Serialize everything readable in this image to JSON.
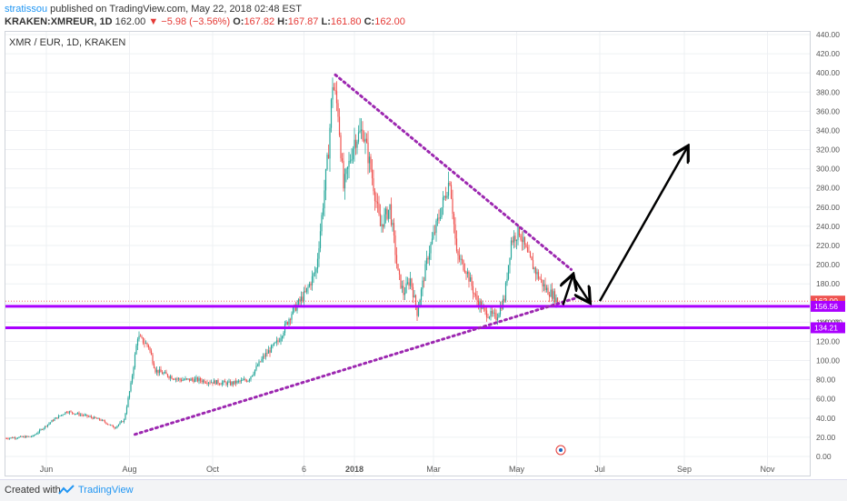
{
  "header": {
    "author": "stratissou",
    "published_text": "published on TradingView.com, May 22, 2018 02:48 EST",
    "symbol": "KRAKEN:XMREUR, 1D",
    "last": "162.00",
    "change": "−5.98 (−3.56%)",
    "open_label": "O:",
    "open": "167.82",
    "high_label": "H:",
    "high": "167.87",
    "low_label": "L:",
    "low": "161.80",
    "close_label": "C:",
    "close": "162.00"
  },
  "chart_label": "XMR / EUR, 1D, KRAKEN",
  "footer": {
    "created_with": "Created with",
    "brand": "TradingView",
    "logo_icon": "tradingview-logo-icon"
  },
  "colors": {
    "up": "#26a69a",
    "down": "#ef5350",
    "support": "#aa00ff",
    "trend": "#9c27b0",
    "arrow": "#000000",
    "last_price": "#ef5350"
  },
  "chart_data": {
    "type": "candlestick",
    "title": "XMR / EUR, 1D, KRAKEN",
    "ylim": [
      -4,
      442
    ],
    "y_ticks": [
      "0.00",
      "20.00",
      "40.00",
      "60.00",
      "80.00",
      "100.00",
      "120.00",
      "140.00",
      "160.00",
      "180.00",
      "200.00",
      "220.00",
      "240.00",
      "260.00",
      "280.00",
      "300.00",
      "320.00",
      "340.00",
      "360.00",
      "380.00",
      "400.00",
      "420.00",
      "440.00"
    ],
    "y_tick_values": [
      0,
      20,
      40,
      60,
      80,
      100,
      120,
      140,
      160,
      180,
      200,
      220,
      240,
      260,
      280,
      300,
      320,
      340,
      360,
      380,
      400,
      420,
      440
    ],
    "x_ticks": [
      {
        "label": "Jun",
        "day": 30
      },
      {
        "label": "Aug",
        "day": 91
      },
      {
        "label": "Oct",
        "day": 152
      },
      {
        "label": "6",
        "day": 219
      },
      {
        "label": "2018",
        "day": 256,
        "bold": true
      },
      {
        "label": "Mar",
        "day": 314
      },
      {
        "label": "May",
        "day": 375
      },
      {
        "label": "Jul",
        "day": 436
      },
      {
        "label": "Sep",
        "day": 498
      },
      {
        "label": "Nov",
        "day": 559
      }
    ],
    "price_path": [
      [
        0,
        19
      ],
      [
        20,
        21
      ],
      [
        35,
        38
      ],
      [
        45,
        47
      ],
      [
        60,
        42
      ],
      [
        70,
        38
      ],
      [
        80,
        30
      ],
      [
        87,
        38
      ],
      [
        92,
        75
      ],
      [
        97,
        125
      ],
      [
        105,
        115
      ],
      [
        110,
        90
      ],
      [
        118,
        85
      ],
      [
        128,
        80
      ],
      [
        140,
        80
      ],
      [
        150,
        78
      ],
      [
        165,
        76
      ],
      [
        178,
        80
      ],
      [
        190,
        105
      ],
      [
        200,
        120
      ],
      [
        210,
        150
      ],
      [
        220,
        170
      ],
      [
        228,
        195
      ],
      [
        232,
        250
      ],
      [
        237,
        320
      ],
      [
        240,
        390
      ],
      [
        244,
        360
      ],
      [
        248,
        280
      ],
      [
        256,
        330
      ],
      [
        262,
        340
      ],
      [
        268,
        300
      ],
      [
        275,
        240
      ],
      [
        282,
        260
      ],
      [
        288,
        190
      ],
      [
        292,
        170
      ],
      [
        297,
        185
      ],
      [
        302,
        150
      ],
      [
        310,
        210
      ],
      [
        318,
        250
      ],
      [
        326,
        290
      ],
      [
        331,
        210
      ],
      [
        338,
        195
      ],
      [
        345,
        165
      ],
      [
        352,
        150
      ],
      [
        360,
        145
      ],
      [
        366,
        165
      ],
      [
        371,
        225
      ],
      [
        377,
        235
      ],
      [
        383,
        210
      ],
      [
        390,
        190
      ],
      [
        396,
        175
      ],
      [
        402,
        168
      ],
      [
        405,
        162
      ]
    ],
    "last_price": 162.0,
    "levels": [
      {
        "label": "162.00",
        "value": 162.0,
        "color": "#ef5350"
      },
      {
        "label": "156.56",
        "value": 156.56,
        "color": "#aa00ff"
      },
      {
        "label": "134.21",
        "value": 134.21,
        "color": "#aa00ff"
      }
    ],
    "partial_label": "140.00",
    "trendlines": [
      {
        "from": [
          242,
          398
        ],
        "to": [
          415,
          195
        ]
      },
      {
        "from": [
          95,
          23
        ],
        "to": [
          418,
          165
        ]
      }
    ],
    "arrows": [
      {
        "from": [
          409,
          158
        ],
        "to": [
          416,
          188
        ],
        "head": "end"
      },
      {
        "from": [
          416,
          188
        ],
        "to": [
          428,
          162
        ],
        "head": "end"
      },
      {
        "from": [
          436,
          162
        ],
        "to": [
          500,
          322
        ],
        "head": "end"
      }
    ]
  }
}
